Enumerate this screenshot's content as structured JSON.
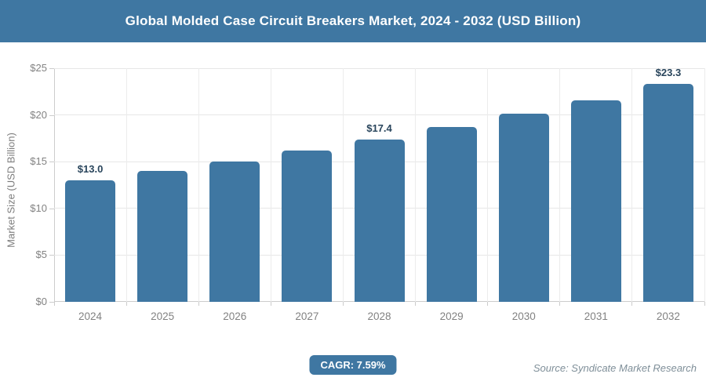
{
  "header": {
    "title": "Global Molded Case Circuit Breakers Market, 2024 - 2032 (USD Billion)"
  },
  "chart_data": {
    "type": "bar",
    "title": "Global Molded Case Circuit Breakers Market, 2024 - 2032 (USD Billion)",
    "categories": [
      "2024",
      "2025",
      "2026",
      "2027",
      "2028",
      "2029",
      "2030",
      "2031",
      "2032"
    ],
    "values": [
      13.0,
      14.0,
      15.0,
      16.2,
      17.4,
      18.7,
      20.1,
      21.6,
      23.3
    ],
    "point_labels": [
      "$13.0",
      "",
      "",
      "",
      "$17.4",
      "",
      "",
      "",
      "$23.3"
    ],
    "xlabel": "",
    "ylabel": "Market Size (USD Billion)",
    "ylim": [
      0,
      25
    ],
    "ytick_step": 5,
    "ytick_labels": [
      "$0",
      "$5",
      "$10",
      "$15",
      "$20",
      "$25"
    ],
    "grid": true,
    "legend": "none",
    "bar_color": "#3f77a2"
  },
  "footer": {
    "cagr_label": "CAGR: 7.59%",
    "source": "Source: Syndicate Market Research"
  },
  "colors": {
    "accent": "#3f77a2",
    "grid": "#e7e7e7",
    "axis": "#cccccc",
    "tick_text": "#828282",
    "data_label": "#29455c",
    "source_text": "#7f8f99"
  }
}
